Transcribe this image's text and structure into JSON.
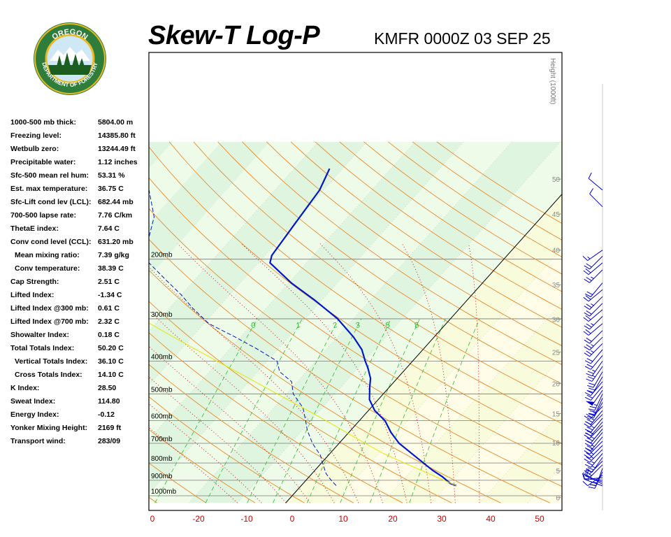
{
  "header": {
    "title": "Skew-T Log-P",
    "station": "KMFR 0000Z 03 SEP 25"
  },
  "logo": {
    "text_top": "OREGON",
    "text_bottom": "DEPARTMENT OF FORESTRY",
    "colors": {
      "ring": "#2e7d3a",
      "gold": "#e8b923",
      "sky": "#cfe8f5",
      "tree": "#1b5e20"
    }
  },
  "indices": [
    {
      "label": "1000-500 mb thick:",
      "value": "5804.00 m",
      "indent": false
    },
    {
      "label": "Freezing level:",
      "value": "14385.80 ft",
      "indent": false
    },
    {
      "label": "Wetbulb zero:",
      "value": "13244.49 ft",
      "indent": false
    },
    {
      "label": "Precipitable water:",
      "value": "1.12 inches",
      "indent": false
    },
    {
      "label": "Sfc-500 mean rel hum:",
      "value": "53.31 %",
      "indent": false
    },
    {
      "label": "Est. max temperature:",
      "value": "36.75 C",
      "indent": false
    },
    {
      "label": "Sfc-Lift cond lev (LCL):",
      "value": "682.44 mb",
      "indent": false
    },
    {
      "label": "700-500 lapse rate:",
      "value": "7.76 C/km",
      "indent": false
    },
    {
      "label": "ThetaE index:",
      "value": "7.64 C",
      "indent": false
    },
    {
      "label": "Conv cond level (CCL):",
      "value": "631.20 mb",
      "indent": false
    },
    {
      "label": "Mean mixing ratio:",
      "value": "7.39 g/kg",
      "indent": true
    },
    {
      "label": "Conv temperature:",
      "value": "38.39 C",
      "indent": true
    },
    {
      "label": "Cap Strength:",
      "value": "2.51 C",
      "indent": false
    },
    {
      "label": "Lifted Index:",
      "value": "-1.34 C",
      "indent": false
    },
    {
      "label": "Lifted Index @300 mb:",
      "value": "0.61 C",
      "indent": false
    },
    {
      "label": "Lifted Index @700 mb:",
      "value": "2.32 C",
      "indent": false
    },
    {
      "label": "Showalter Index:",
      "value": "0.18 C",
      "indent": false
    },
    {
      "label": "Total Totals Index:",
      "value": "50.20 C",
      "indent": false
    },
    {
      "label": "Vertical Totals Index:",
      "value": "36.10 C",
      "indent": true
    },
    {
      "label": "Cross Totals Index:",
      "value": "14.10 C",
      "indent": true
    },
    {
      "label": "K Index:",
      "value": "28.50",
      "indent": false
    },
    {
      "label": "Sweat Index:",
      "value": "114.80",
      "indent": false
    },
    {
      "label": "Energy Index:",
      "value": "-0.12",
      "indent": false
    },
    {
      "label": "Yonker Mixing Height:",
      "value": "2169 ft",
      "indent": false
    },
    {
      "label": "Transport wind:",
      "value": "283/09",
      "indent": false
    }
  ],
  "chart_data": {
    "type": "line",
    "x_axis": {
      "label": "",
      "ticks": [
        "0",
        "-20",
        "-10",
        "0",
        "10",
        "20",
        "30",
        "40",
        "50"
      ],
      "color": "#cc0000"
    },
    "pressure_levels": [
      {
        "p": 200,
        "label": "200mb"
      },
      {
        "p": 300,
        "label": "300mb"
      },
      {
        "p": 400,
        "label": "400mb"
      },
      {
        "p": 500,
        "label": "500mb"
      },
      {
        "p": 600,
        "label": "600mb"
      },
      {
        "p": 700,
        "label": "700mb"
      },
      {
        "p": 800,
        "label": "800mb"
      },
      {
        "p": 900,
        "label": "900mb"
      },
      {
        "p": 1000,
        "label": "1000mb"
      }
    ],
    "height_axis": {
      "label": "Height (1000ft)",
      "ticks": [
        {
          "kft": 50,
          "label": "50"
        },
        {
          "kft": 45,
          "label": "45"
        },
        {
          "kft": 40,
          "label": "40"
        },
        {
          "kft": 35,
          "label": "35"
        },
        {
          "kft": 30,
          "label": "30"
        },
        {
          "kft": 25,
          "label": "25"
        },
        {
          "kft": 20,
          "label": "20"
        },
        {
          "kft": 15,
          "label": "15"
        },
        {
          "kft": 10,
          "label": "10"
        },
        {
          "kft": 5,
          "label": "5"
        },
        {
          "kft": 0,
          "label": "0"
        }
      ]
    },
    "mixing_ratio_labels": [
      "0",
      "1",
      "2",
      "3",
      "5",
      "8"
    ],
    "series": [
      {
        "kind": "temperature",
        "color": "#0018c8",
        "style": "solid",
        "points": [
          {
            "p": 933,
            "t": 32.0
          },
          {
            "p": 920,
            "t": 30.4
          },
          {
            "p": 880,
            "t": 27.6
          },
          {
            "p": 840,
            "t": 24.2
          },
          {
            "p": 780,
            "t": 19.4
          },
          {
            "p": 700,
            "t": 12.4
          },
          {
            "p": 650,
            "t": 8.7
          },
          {
            "p": 600,
            "t": 5.3
          },
          {
            "p": 560,
            "t": 1.3
          },
          {
            "p": 520,
            "t": -1.8
          },
          {
            "p": 475,
            "t": -4.2
          },
          {
            "p": 467,
            "t": -4.6
          },
          {
            "p": 450,
            "t": -5.5
          },
          {
            "p": 420,
            "t": -7.9
          },
          {
            "p": 400,
            "t": -9.8
          },
          {
            "p": 370,
            "t": -12.6
          },
          {
            "p": 340,
            "t": -16.6
          },
          {
            "p": 300,
            "t": -23.3
          },
          {
            "p": 265,
            "t": -31.3
          },
          {
            "p": 235,
            "t": -39.5
          },
          {
            "p": 205,
            "t": -47.6
          },
          {
            "p": 195,
            "t": -48.6
          },
          {
            "p": 160,
            "t": -49.6
          },
          {
            "p": 125,
            "t": -50.8
          },
          {
            "p": 108,
            "t": -52.7
          }
        ]
      },
      {
        "kind": "dewpoint",
        "color": "#0018c8",
        "style": "dashed",
        "points": [
          {
            "p": 933,
            "t": 7.2
          },
          {
            "p": 900,
            "t": 5.2
          },
          {
            "p": 860,
            "t": 2.9
          },
          {
            "p": 800,
            "t": 0.2
          },
          {
            "p": 760,
            "t": -1.6
          },
          {
            "p": 700,
            "t": -5.5
          },
          {
            "p": 640,
            "t": -9.0
          },
          {
            "p": 600,
            "t": -11.1
          },
          {
            "p": 550,
            "t": -14.0
          },
          {
            "p": 500,
            "t": -18.6
          },
          {
            "p": 460,
            "t": -21.2
          },
          {
            "p": 430,
            "t": -25.5
          },
          {
            "p": 400,
            "t": -28.0
          },
          {
            "p": 370,
            "t": -34.0
          },
          {
            "p": 340,
            "t": -41.0
          },
          {
            "p": 310,
            "t": -49.0
          },
          {
            "p": 280,
            "t": -55.0
          },
          {
            "p": 255,
            "t": -60.0
          },
          {
            "p": 230,
            "t": -66.0
          },
          {
            "p": 200,
            "t": -74.0
          },
          {
            "p": 175,
            "t": -77.0
          },
          {
            "p": 150,
            "t": -80.0
          },
          {
            "p": 125,
            "t": -86.0
          }
        ]
      },
      {
        "kind": "parcel",
        "color": "#e6e600",
        "style": "solid",
        "points": [
          {
            "p": 933,
            "t": 32.0
          },
          {
            "p": 850,
            "t": 22.9
          },
          {
            "p": 800,
            "t": 17.1
          },
          {
            "p": 750,
            "t": 11.0
          },
          {
            "p": 700,
            "t": 5.4
          },
          {
            "p": 650,
            "t": -0.5
          },
          {
            "p": 600,
            "t": -6.9
          },
          {
            "p": 550,
            "t": -14.0
          },
          {
            "p": 500,
            "t": -21.9
          },
          {
            "p": 450,
            "t": -30.6
          },
          {
            "p": 400,
            "t": -40.4
          },
          {
            "p": 350,
            "t": -51.4
          },
          {
            "p": 300,
            "t": -63.8
          }
        ]
      }
    ]
  },
  "wind_profile": {
    "color": "#0000d0",
    "barbs": [
      {
        "p": 935,
        "dir": 290,
        "spd": 5
      },
      {
        "p": 925,
        "dir": 300,
        "spd": 10
      },
      {
        "p": 912,
        "dir": 290,
        "spd": 10
      },
      {
        "p": 900,
        "dir": 275,
        "spd": 10
      },
      {
        "p": 885,
        "dir": 265,
        "spd": 10
      },
      {
        "p": 870,
        "dir": 235,
        "spd": 10
      },
      {
        "p": 850,
        "dir": 205,
        "spd": 25
      },
      {
        "p": 830,
        "dir": 200,
        "spd": 20
      },
      {
        "p": 810,
        "dir": 225,
        "spd": 15
      },
      {
        "p": 790,
        "dir": 225,
        "spd": 20
      },
      {
        "p": 770,
        "dir": 215,
        "spd": 25
      },
      {
        "p": 750,
        "dir": 220,
        "spd": 25
      },
      {
        "p": 730,
        "dir": 225,
        "spd": 25
      },
      {
        "p": 710,
        "dir": 225,
        "spd": 25
      },
      {
        "p": 690,
        "dir": 225,
        "spd": 25
      },
      {
        "p": 670,
        "dir": 220,
        "spd": 25
      },
      {
        "p": 650,
        "dir": 220,
        "spd": 20
      },
      {
        "p": 635,
        "dir": 220,
        "spd": 25
      },
      {
        "p": 620,
        "dir": 225,
        "spd": 25
      },
      {
        "p": 605,
        "dir": 220,
        "spd": 20
      },
      {
        "p": 590,
        "dir": 220,
        "spd": 25
      },
      {
        "p": 575,
        "dir": 225,
        "spd": 20
      },
      {
        "p": 560,
        "dir": 220,
        "spd": 25
      },
      {
        "p": 545,
        "dir": 225,
        "spd": 20
      },
      {
        "p": 530,
        "dir": 210,
        "spd": 25
      },
      {
        "p": 515,
        "dir": 205,
        "spd": 20
      },
      {
        "p": 500,
        "dir": 205,
        "spd": 25
      },
      {
        "p": 488,
        "dir": 215,
        "spd": 50
      },
      {
        "p": 475,
        "dir": 220,
        "spd": 20
      },
      {
        "p": 460,
        "dir": 220,
        "spd": 20
      },
      {
        "p": 445,
        "dir": 210,
        "spd": 20
      },
      {
        "p": 430,
        "dir": 210,
        "spd": 20
      },
      {
        "p": 415,
        "dir": 215,
        "spd": 25
      },
      {
        "p": 400,
        "dir": 215,
        "spd": 25
      },
      {
        "p": 385,
        "dir": 220,
        "spd": 20
      },
      {
        "p": 370,
        "dir": 220,
        "spd": 20
      },
      {
        "p": 355,
        "dir": 225,
        "spd": 25
      },
      {
        "p": 340,
        "dir": 225,
        "spd": 25
      },
      {
        "p": 325,
        "dir": 225,
        "spd": 20
      },
      {
        "p": 310,
        "dir": 230,
        "spd": 20
      },
      {
        "p": 295,
        "dir": 225,
        "spd": 25
      },
      {
        "p": 282,
        "dir": 230,
        "spd": 20
      },
      {
        "p": 270,
        "dir": 225,
        "spd": 20
      },
      {
        "p": 258,
        "dir": 225,
        "spd": 25
      },
      {
        "p": 246,
        "dir": 230,
        "spd": 20
      },
      {
        "p": 235,
        "dir": 220,
        "spd": 20
      },
      {
        "p": 215,
        "dir": 225,
        "spd": 25
      },
      {
        "p": 205,
        "dir": 230,
        "spd": 20
      },
      {
        "p": 196,
        "dir": 225,
        "spd": 20
      },
      {
        "p": 188,
        "dir": 235,
        "spd": 15
      },
      {
        "p": 140,
        "dir": 315,
        "spd": 10
      },
      {
        "p": 125,
        "dir": 310,
        "spd": 10
      }
    ]
  }
}
